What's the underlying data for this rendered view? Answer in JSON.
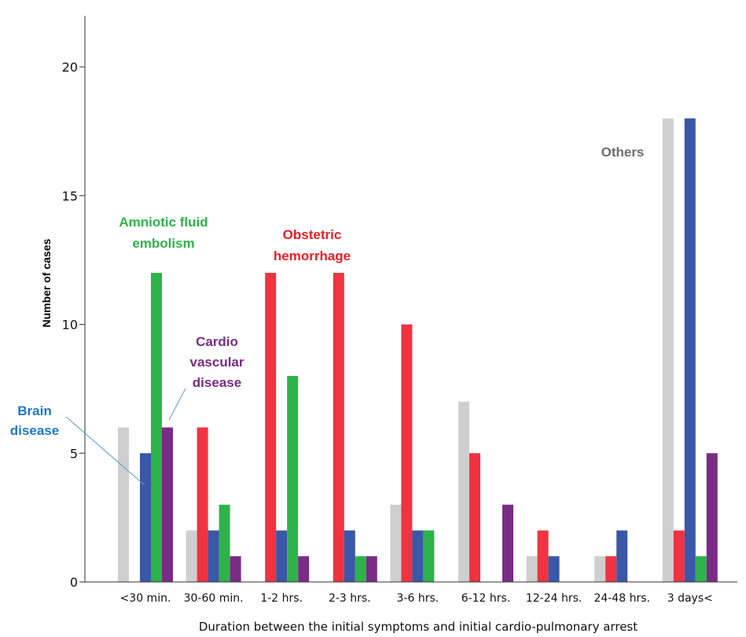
{
  "chart_data": {
    "type": "bar",
    "ylabel": "Number of cases",
    "xlabel": "Duration between the initial symptoms and initial cardio-pulmonary arrest",
    "ylim": [
      0,
      22
    ],
    "yticks": [
      0,
      5,
      10,
      15,
      20
    ],
    "categories": [
      "<30 min.",
      "30-60 min.",
      "1-2 hrs.",
      "2-3 hrs.",
      "3-6 hrs.",
      "6-12 hrs.",
      "12-24 hrs.",
      "24-48 hrs.",
      "3 days<"
    ],
    "series": [
      {
        "key": "others",
        "color": "#cfcfcf",
        "values": [
          6,
          2,
          0,
          0,
          3,
          7,
          1,
          1,
          18
        ]
      },
      {
        "key": "obstetric",
        "color": "#ef3340",
        "values": [
          0,
          6,
          12,
          12,
          10,
          5,
          2,
          1,
          2
        ]
      },
      {
        "key": "brain",
        "color": "#3a57a8",
        "values": [
          5,
          2,
          2,
          2,
          2,
          0,
          1,
          2,
          18
        ]
      },
      {
        "key": "amniotic",
        "color": "#2db34a",
        "values": [
          12,
          3,
          8,
          1,
          2,
          0,
          0,
          0,
          1
        ]
      },
      {
        "key": "cardio",
        "color": "#7a2b86",
        "values": [
          6,
          1,
          1,
          1,
          0,
          3,
          0,
          0,
          5
        ]
      }
    ],
    "annotations": {
      "amniotic_line1": "Amniotic fluid",
      "amniotic_line2": "embolism",
      "obstetric_line1": "Obstetric",
      "obstetric_line2": "hemorrhage",
      "cardio_line1": "Cardio",
      "cardio_line2": "vascular",
      "cardio_line3": "disease",
      "brain_line1": "Brain",
      "brain_line2": "disease",
      "others": "Others"
    },
    "annotation_colors": {
      "amniotic": "#2db34a",
      "obstetric": "#ef1c24",
      "cardio": "#7a2b86",
      "brain": "#1f78c8",
      "others": "#6b6b6b"
    }
  }
}
